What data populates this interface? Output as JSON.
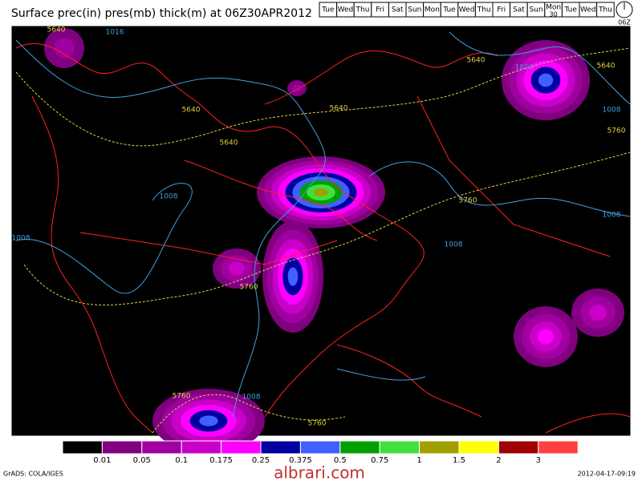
{
  "header": {
    "title": "Surface prec(in) pres(mb) thick(m) at 06Z30APR2012",
    "days": [
      "Tue",
      "Wed",
      "Thu",
      "Fri",
      "Sat",
      "Sun",
      "Mon",
      "Tue",
      "Wed",
      "Thu",
      "Fri",
      "Sat",
      "Sun",
      "Mon",
      "Tue",
      "Wed",
      "Thu"
    ],
    "highlight_day_number": "30",
    "clock": "06Z"
  },
  "map": {
    "contour_labels": [
      "5640",
      "1016",
      "5640",
      "5640",
      "5640",
      "5640",
      "1016",
      "5640",
      "1008",
      "5760",
      "1008",
      "1008",
      "5760",
      "1008",
      "1008",
      "5760",
      "5760",
      "1008",
      "5760"
    ]
  },
  "legend": {
    "colors": [
      "#000000",
      "#800080",
      "#a000a0",
      "#c800c8",
      "#ff00ff",
      "#0000a0",
      "#4060ff",
      "#00a000",
      "#40e040",
      "#a0a000",
      "#ffff00",
      "#a00000",
      "#ff4040"
    ],
    "values": [
      0.01,
      0.05,
      0.1,
      0.175,
      0.25,
      0.375,
      0.5,
      0.75,
      1,
      1.5,
      2,
      3
    ]
  },
  "footer": {
    "left": "GrADS: COLA/IGES",
    "watermark": "albrari.com",
    "timestamp": "2012-04-17-09:19"
  }
}
